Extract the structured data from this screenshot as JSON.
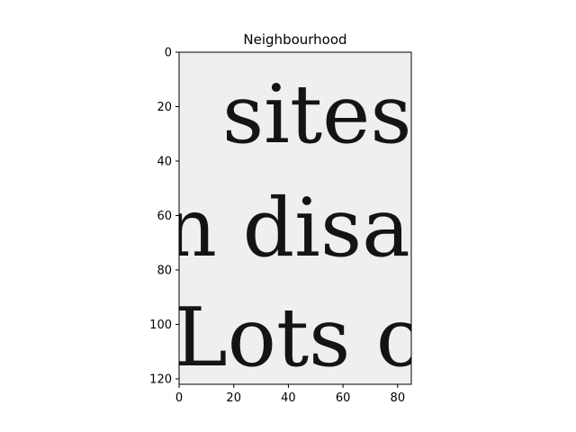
{
  "chart_data": {
    "type": "image",
    "title": "Neighbourhood",
    "xlim": [
      0,
      85
    ],
    "ylim": [
      122,
      0
    ],
    "x_ticks": [
      0,
      20,
      40,
      60,
      80
    ],
    "y_ticks": [
      0,
      20,
      40,
      60,
      80,
      100,
      120
    ],
    "x_tick_labels": [
      "0",
      "20",
      "40",
      "60",
      "80"
    ],
    "y_tick_labels": [
      "0",
      "20",
      "40",
      "60",
      "80",
      "100",
      "120"
    ],
    "grid": false,
    "colormap": "gray",
    "image_text_lines": [
      "sites",
      "n disa",
      "Lots c"
    ]
  },
  "colors": {
    "background": "#ffffff",
    "image_background": "#efefef",
    "ink": "#141414",
    "axis": "#000000"
  }
}
